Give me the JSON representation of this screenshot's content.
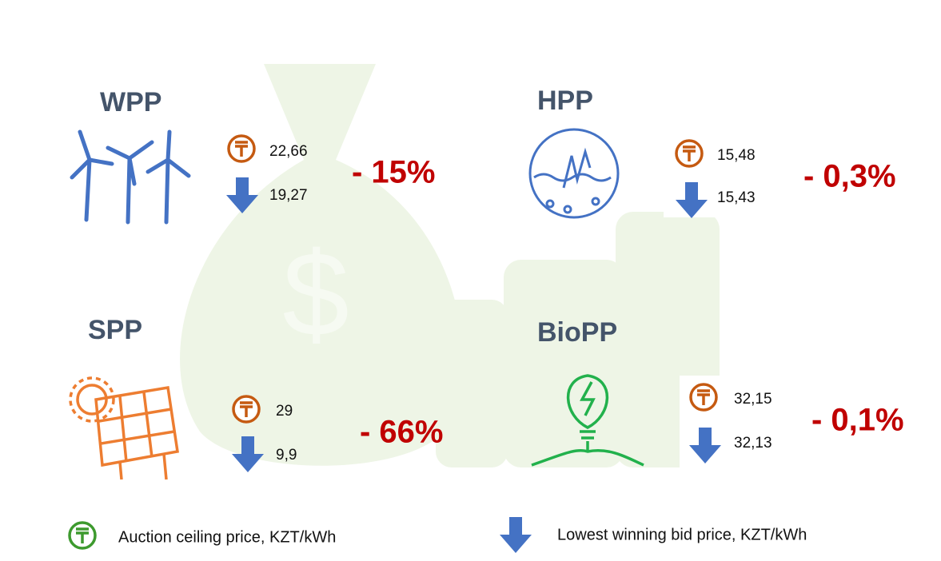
{
  "panels": [
    {
      "title": "WPP",
      "ceiling_price": "22,66",
      "lowest_bid": "19,27",
      "change": "- 15%"
    },
    {
      "title": "HPP",
      "ceiling_price": "15,48",
      "lowest_bid": "15,43",
      "change": "- 0,3%"
    },
    {
      "title": "SPP",
      "ceiling_price": "29",
      "lowest_bid": "9,9",
      "change": "- 66%"
    },
    {
      "title": "BioPP",
      "ceiling_price": "32,15",
      "lowest_bid": "32,13",
      "change": "- 0,1%"
    }
  ],
  "legend": {
    "ceiling": "Auction ceiling price, KZT/kWh",
    "lowest_bid": "Lowest winning bid price, KZT/kWh"
  }
}
